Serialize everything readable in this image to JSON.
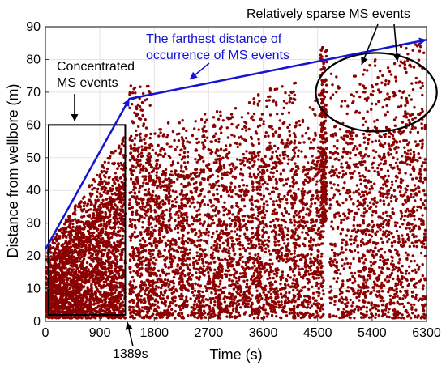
{
  "chart_data": {
    "type": "scatter",
    "title": "",
    "xlabel": "Time (s)",
    "ylabel": "Distance from wellbore (m)",
    "xlim": [
      0,
      6300
    ],
    "ylim": [
      0,
      90
    ],
    "xticks": [
      0,
      900,
      1800,
      2700,
      3600,
      4500,
      5400,
      6300
    ],
    "yticks": [
      0,
      10,
      20,
      30,
      40,
      50,
      60,
      70,
      80,
      90
    ],
    "grid": true,
    "point_color": "#8b0000",
    "annotation_color": "#1414d2",
    "annotations": {
      "concentrated": "Concentrated\nMS events",
      "farthest": "The farthest distance of\noccurrence of MS events",
      "sparse": "Relatively sparse MS events",
      "marker": "1389s"
    },
    "farthest_line": [
      {
        "x": 0,
        "y": 22
      },
      {
        "x": 1389,
        "y": 68
      },
      {
        "x": 6300,
        "y": 86
      }
    ],
    "concentrated_box": {
      "x0": 0,
      "x1": 1320,
      "y0": 2,
      "y1": 60
    },
    "sparse_ellipse": {
      "cx": 5470,
      "cy": 70,
      "rx": 1000,
      "ry": 12
    },
    "event_clusters": [
      {
        "x0": 10,
        "x1": 1320,
        "ymin": 1,
        "ytop0": 22,
        "ytop1": 58,
        "n": 2600
      },
      {
        "x0": 1389,
        "x1": 1750,
        "ymin": 1,
        "ytop0": 72,
        "ytop1": 72,
        "n": 500
      },
      {
        "x0": 1700,
        "x1": 2300,
        "ymin": 1,
        "ytop0": 60,
        "ytop1": 62,
        "n": 650
      },
      {
        "x0": 2250,
        "x1": 2900,
        "ymin": 1,
        "ytop0": 60,
        "ytop1": 66,
        "n": 650
      },
      {
        "x0": 2850,
        "x1": 3550,
        "ymin": 1,
        "ytop0": 62,
        "ytop1": 70,
        "n": 700
      },
      {
        "x0": 3500,
        "x1": 4150,
        "ymin": 1,
        "ytop0": 70,
        "ytop1": 75,
        "n": 650
      },
      {
        "x0": 4100,
        "x1": 4600,
        "ymin": 1,
        "ytop0": 60,
        "ytop1": 72,
        "n": 500
      },
      {
        "x0": 4550,
        "x1": 4650,
        "ymin": 30,
        "ytop0": 84,
        "ytop1": 84,
        "n": 260
      },
      {
        "x0": 4700,
        "x1": 5300,
        "ymin": 1,
        "ytop0": 76,
        "ytop1": 78,
        "n": 450
      },
      {
        "x0": 5250,
        "x1": 5750,
        "ymin": 1,
        "ytop0": 80,
        "ytop1": 80,
        "n": 480
      },
      {
        "x0": 5750,
        "x1": 6280,
        "ymin": 1,
        "ytop0": 84,
        "ytop1": 86,
        "n": 520
      }
    ]
  }
}
